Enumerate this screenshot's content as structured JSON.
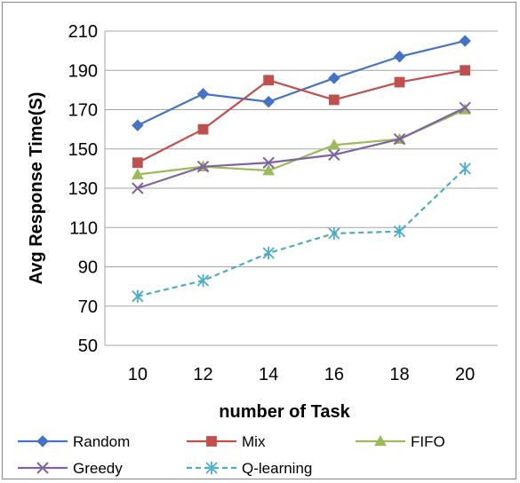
{
  "chart_data": {
    "type": "line",
    "title": "",
    "xlabel": "number of Task",
    "ylabel": "Avg Response Time(S)",
    "categories": [
      "10",
      "12",
      "14",
      "16",
      "18",
      "20"
    ],
    "ylim": [
      50,
      210
    ],
    "yticks": [
      "50",
      "70",
      "90",
      "110",
      "130",
      "150",
      "170",
      "190",
      "210"
    ],
    "grid": "horizontal",
    "legend_position": "bottom",
    "series": [
      {
        "name": "Random",
        "values": [
          162,
          178,
          174,
          186,
          197,
          205
        ],
        "color": "#4472C4",
        "marker": "diamond",
        "dash": "solid"
      },
      {
        "name": "Mix",
        "values": [
          143,
          160,
          185,
          175,
          184,
          190
        ],
        "color": "#C0504D",
        "marker": "square",
        "dash": "solid"
      },
      {
        "name": "FIFO",
        "values": [
          137,
          141,
          139,
          152,
          155,
          170
        ],
        "color": "#9BBB59",
        "marker": "triangle",
        "dash": "solid"
      },
      {
        "name": "Greedy",
        "values": [
          130,
          141,
          143,
          147,
          155,
          171
        ],
        "color": "#8064A2",
        "marker": "x",
        "dash": "solid"
      },
      {
        "name": "Q-learning",
        "values": [
          75,
          83,
          97,
          107,
          108,
          140
        ],
        "color": "#4BACC6",
        "marker": "star",
        "dash": "dashed"
      }
    ]
  }
}
